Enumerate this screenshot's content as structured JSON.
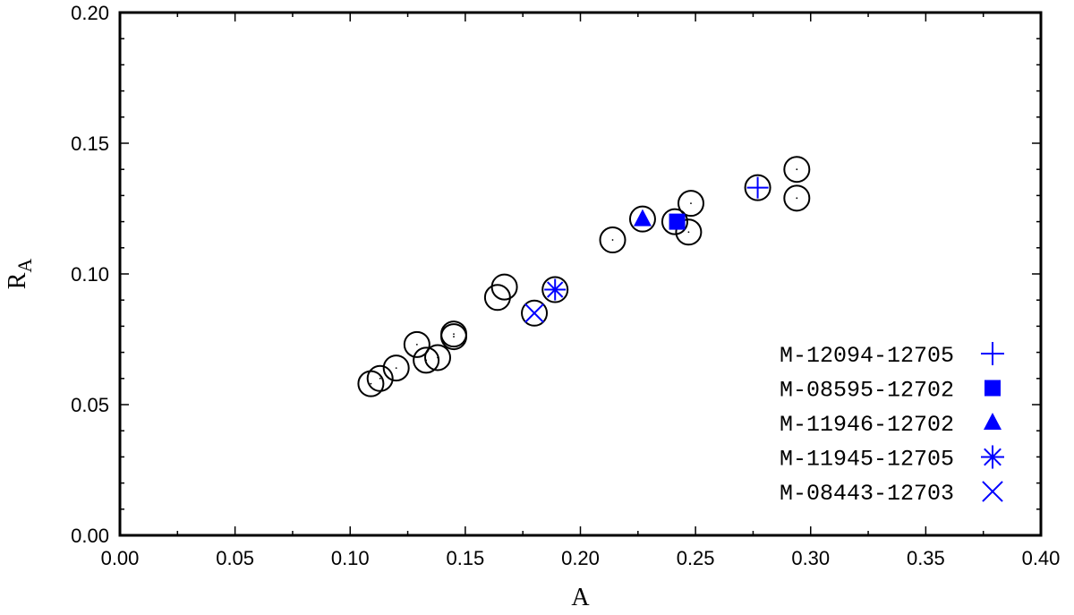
{
  "chart_data": {
    "type": "scatter",
    "xlabel": "A",
    "ylabel": "R",
    "ylabel_sub": "A",
    "xlim": [
      0.0,
      0.4
    ],
    "ylim": [
      0.0,
      0.2
    ],
    "x_ticks": [
      "0.00",
      "0.05",
      "0.10",
      "0.15",
      "0.20",
      "0.25",
      "0.30",
      "0.35",
      "0.40"
    ],
    "y_ticks": [
      "0.00",
      "0.05",
      "0.10",
      "0.15",
      "0.20"
    ],
    "grid": false,
    "legend_position": "bottom-right",
    "series": [
      {
        "marker": "open-circle-with-dot",
        "color": "#000000",
        "points": [
          {
            "x": 0.109,
            "y": 0.058
          },
          {
            "x": 0.113,
            "y": 0.06
          },
          {
            "x": 0.12,
            "y": 0.064
          },
          {
            "x": 0.129,
            "y": 0.073
          },
          {
            "x": 0.133,
            "y": 0.067
          },
          {
            "x": 0.138,
            "y": 0.068
          },
          {
            "x": 0.145,
            "y": 0.076
          },
          {
            "x": 0.145,
            "y": 0.077
          },
          {
            "x": 0.164,
            "y": 0.091
          },
          {
            "x": 0.167,
            "y": 0.095
          },
          {
            "x": 0.18,
            "y": 0.085
          },
          {
            "x": 0.189,
            "y": 0.094
          },
          {
            "x": 0.214,
            "y": 0.113
          },
          {
            "x": 0.227,
            "y": 0.121
          },
          {
            "x": 0.241,
            "y": 0.12
          },
          {
            "x": 0.247,
            "y": 0.116
          },
          {
            "x": 0.248,
            "y": 0.127
          },
          {
            "x": 0.277,
            "y": 0.133
          },
          {
            "x": 0.294,
            "y": 0.14
          },
          {
            "x": 0.294,
            "y": 0.129
          }
        ]
      },
      {
        "name": "M-12094-12705",
        "marker": "plus",
        "color": "#0000ff",
        "points": [
          {
            "x": 0.277,
            "y": 0.133
          }
        ]
      },
      {
        "name": "M-08595-12702",
        "marker": "square",
        "color": "#0000ff",
        "points": [
          {
            "x": 0.242,
            "y": 0.12
          }
        ]
      },
      {
        "name": "M-11946-12702",
        "marker": "triangle",
        "color": "#0000ff",
        "points": [
          {
            "x": 0.227,
            "y": 0.121
          }
        ]
      },
      {
        "name": "M-11945-12705",
        "marker": "asterisk",
        "color": "#0000ff",
        "points": [
          {
            "x": 0.189,
            "y": 0.094
          }
        ]
      },
      {
        "name": "M-08443-12703",
        "marker": "cross",
        "color": "#0000ff",
        "points": [
          {
            "x": 0.18,
            "y": 0.085
          }
        ]
      }
    ]
  }
}
